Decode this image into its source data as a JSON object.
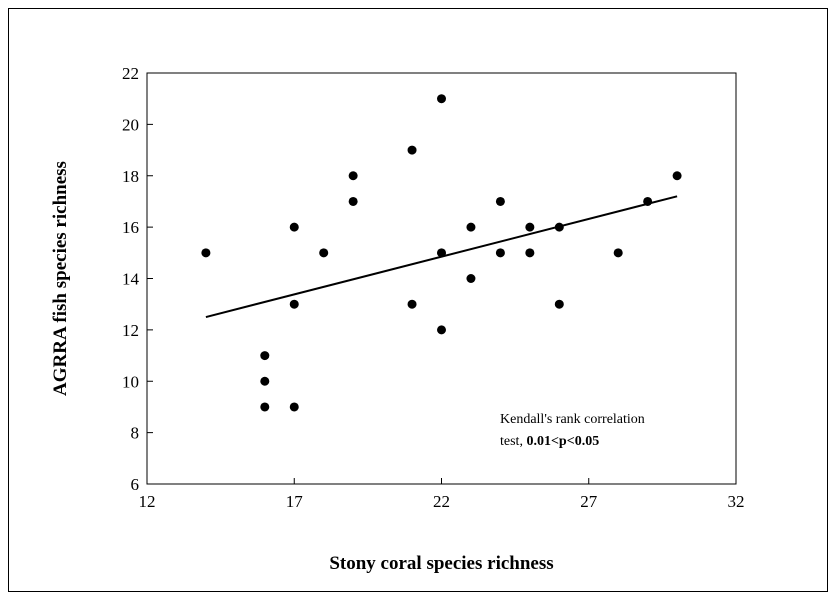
{
  "chart_data": {
    "type": "scatter",
    "title": "",
    "xlabel": "Stony coral species richness",
    "ylabel": "AGRRA fish species richness",
    "xlim": [
      12,
      32
    ],
    "ylim": [
      6,
      22
    ],
    "x_ticks": [
      12,
      17,
      22,
      27,
      32
    ],
    "y_ticks": [
      6,
      8,
      10,
      12,
      14,
      16,
      18,
      20,
      22
    ],
    "grid": false,
    "legend": "none",
    "annotation": {
      "line1": "Kendall's rank correlation",
      "line2_prefix": "test, ",
      "line2_value": "0.01<p<0.05"
    },
    "trendline": {
      "x": [
        14,
        30
      ],
      "y": [
        12.5,
        17.2
      ]
    },
    "points": [
      {
        "x": 14,
        "y": 15
      },
      {
        "x": 16,
        "y": 11
      },
      {
        "x": 16,
        "y": 10
      },
      {
        "x": 16,
        "y": 9
      },
      {
        "x": 17,
        "y": 16
      },
      {
        "x": 17,
        "y": 13
      },
      {
        "x": 17,
        "y": 9
      },
      {
        "x": 18,
        "y": 15
      },
      {
        "x": 19,
        "y": 18
      },
      {
        "x": 19,
        "y": 17
      },
      {
        "x": 21,
        "y": 19
      },
      {
        "x": 21,
        "y": 13
      },
      {
        "x": 22,
        "y": 21
      },
      {
        "x": 22,
        "y": 15
      },
      {
        "x": 22,
        "y": 12
      },
      {
        "x": 23,
        "y": 16
      },
      {
        "x": 23,
        "y": 14
      },
      {
        "x": 24,
        "y": 17
      },
      {
        "x": 24,
        "y": 15
      },
      {
        "x": 25,
        "y": 16
      },
      {
        "x": 25,
        "y": 15
      },
      {
        "x": 26,
        "y": 16
      },
      {
        "x": 26,
        "y": 13
      },
      {
        "x": 28,
        "y": 15
      },
      {
        "x": 29,
        "y": 17
      },
      {
        "x": 30,
        "y": 18
      }
    ],
    "marker_color": "#000000"
  }
}
